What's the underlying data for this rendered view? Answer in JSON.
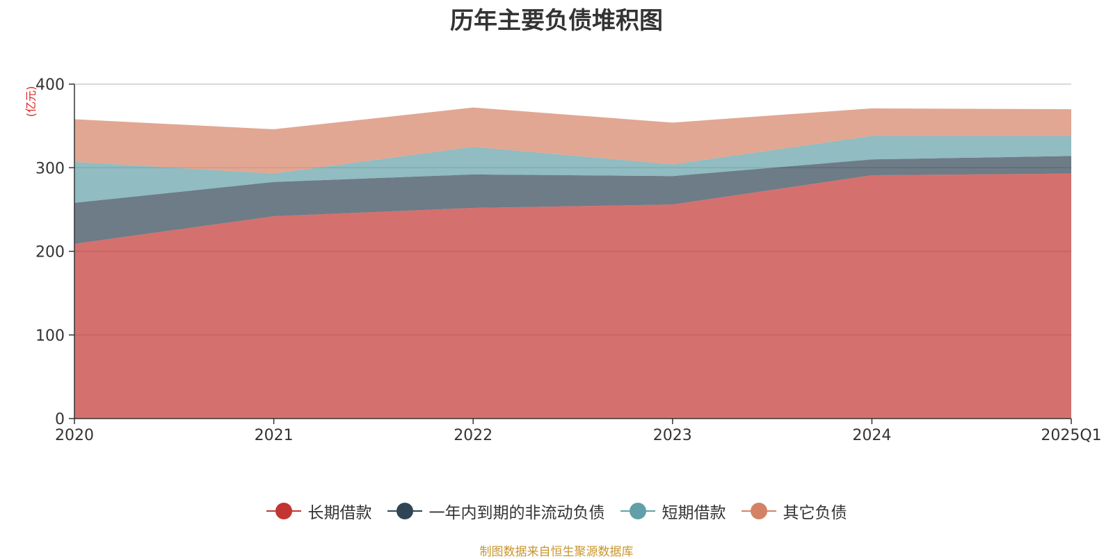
{
  "chart_data": {
    "type": "area",
    "stacked": true,
    "title": "历年主要负债堆积图",
    "unit_label": "(亿元)",
    "categories": [
      "2020",
      "2021",
      "2022",
      "2023",
      "2024",
      "2025Q1"
    ],
    "ylim": [
      0,
      400
    ],
    "yticks": [
      "0",
      "100",
      "200",
      "300",
      "400"
    ],
    "grid": true,
    "legend_position": "bottom",
    "series": [
      {
        "name": "长期借款",
        "color": "#c23531",
        "values": [
          209,
          242,
          252,
          256,
          291,
          293
        ]
      },
      {
        "name": "一年内到期的非流动负债",
        "color": "#2f4554",
        "values": [
          49,
          41,
          40,
          34,
          19,
          21
        ]
      },
      {
        "name": "短期借款",
        "color": "#61a0a8",
        "values": [
          49,
          10,
          33,
          14,
          28,
          24
        ]
      },
      {
        "name": "其它负债",
        "color": "#d48265",
        "values": [
          51,
          53,
          47,
          50,
          33,
          32
        ]
      }
    ]
  },
  "source_note": "制图数据来自恒生聚源数据库"
}
